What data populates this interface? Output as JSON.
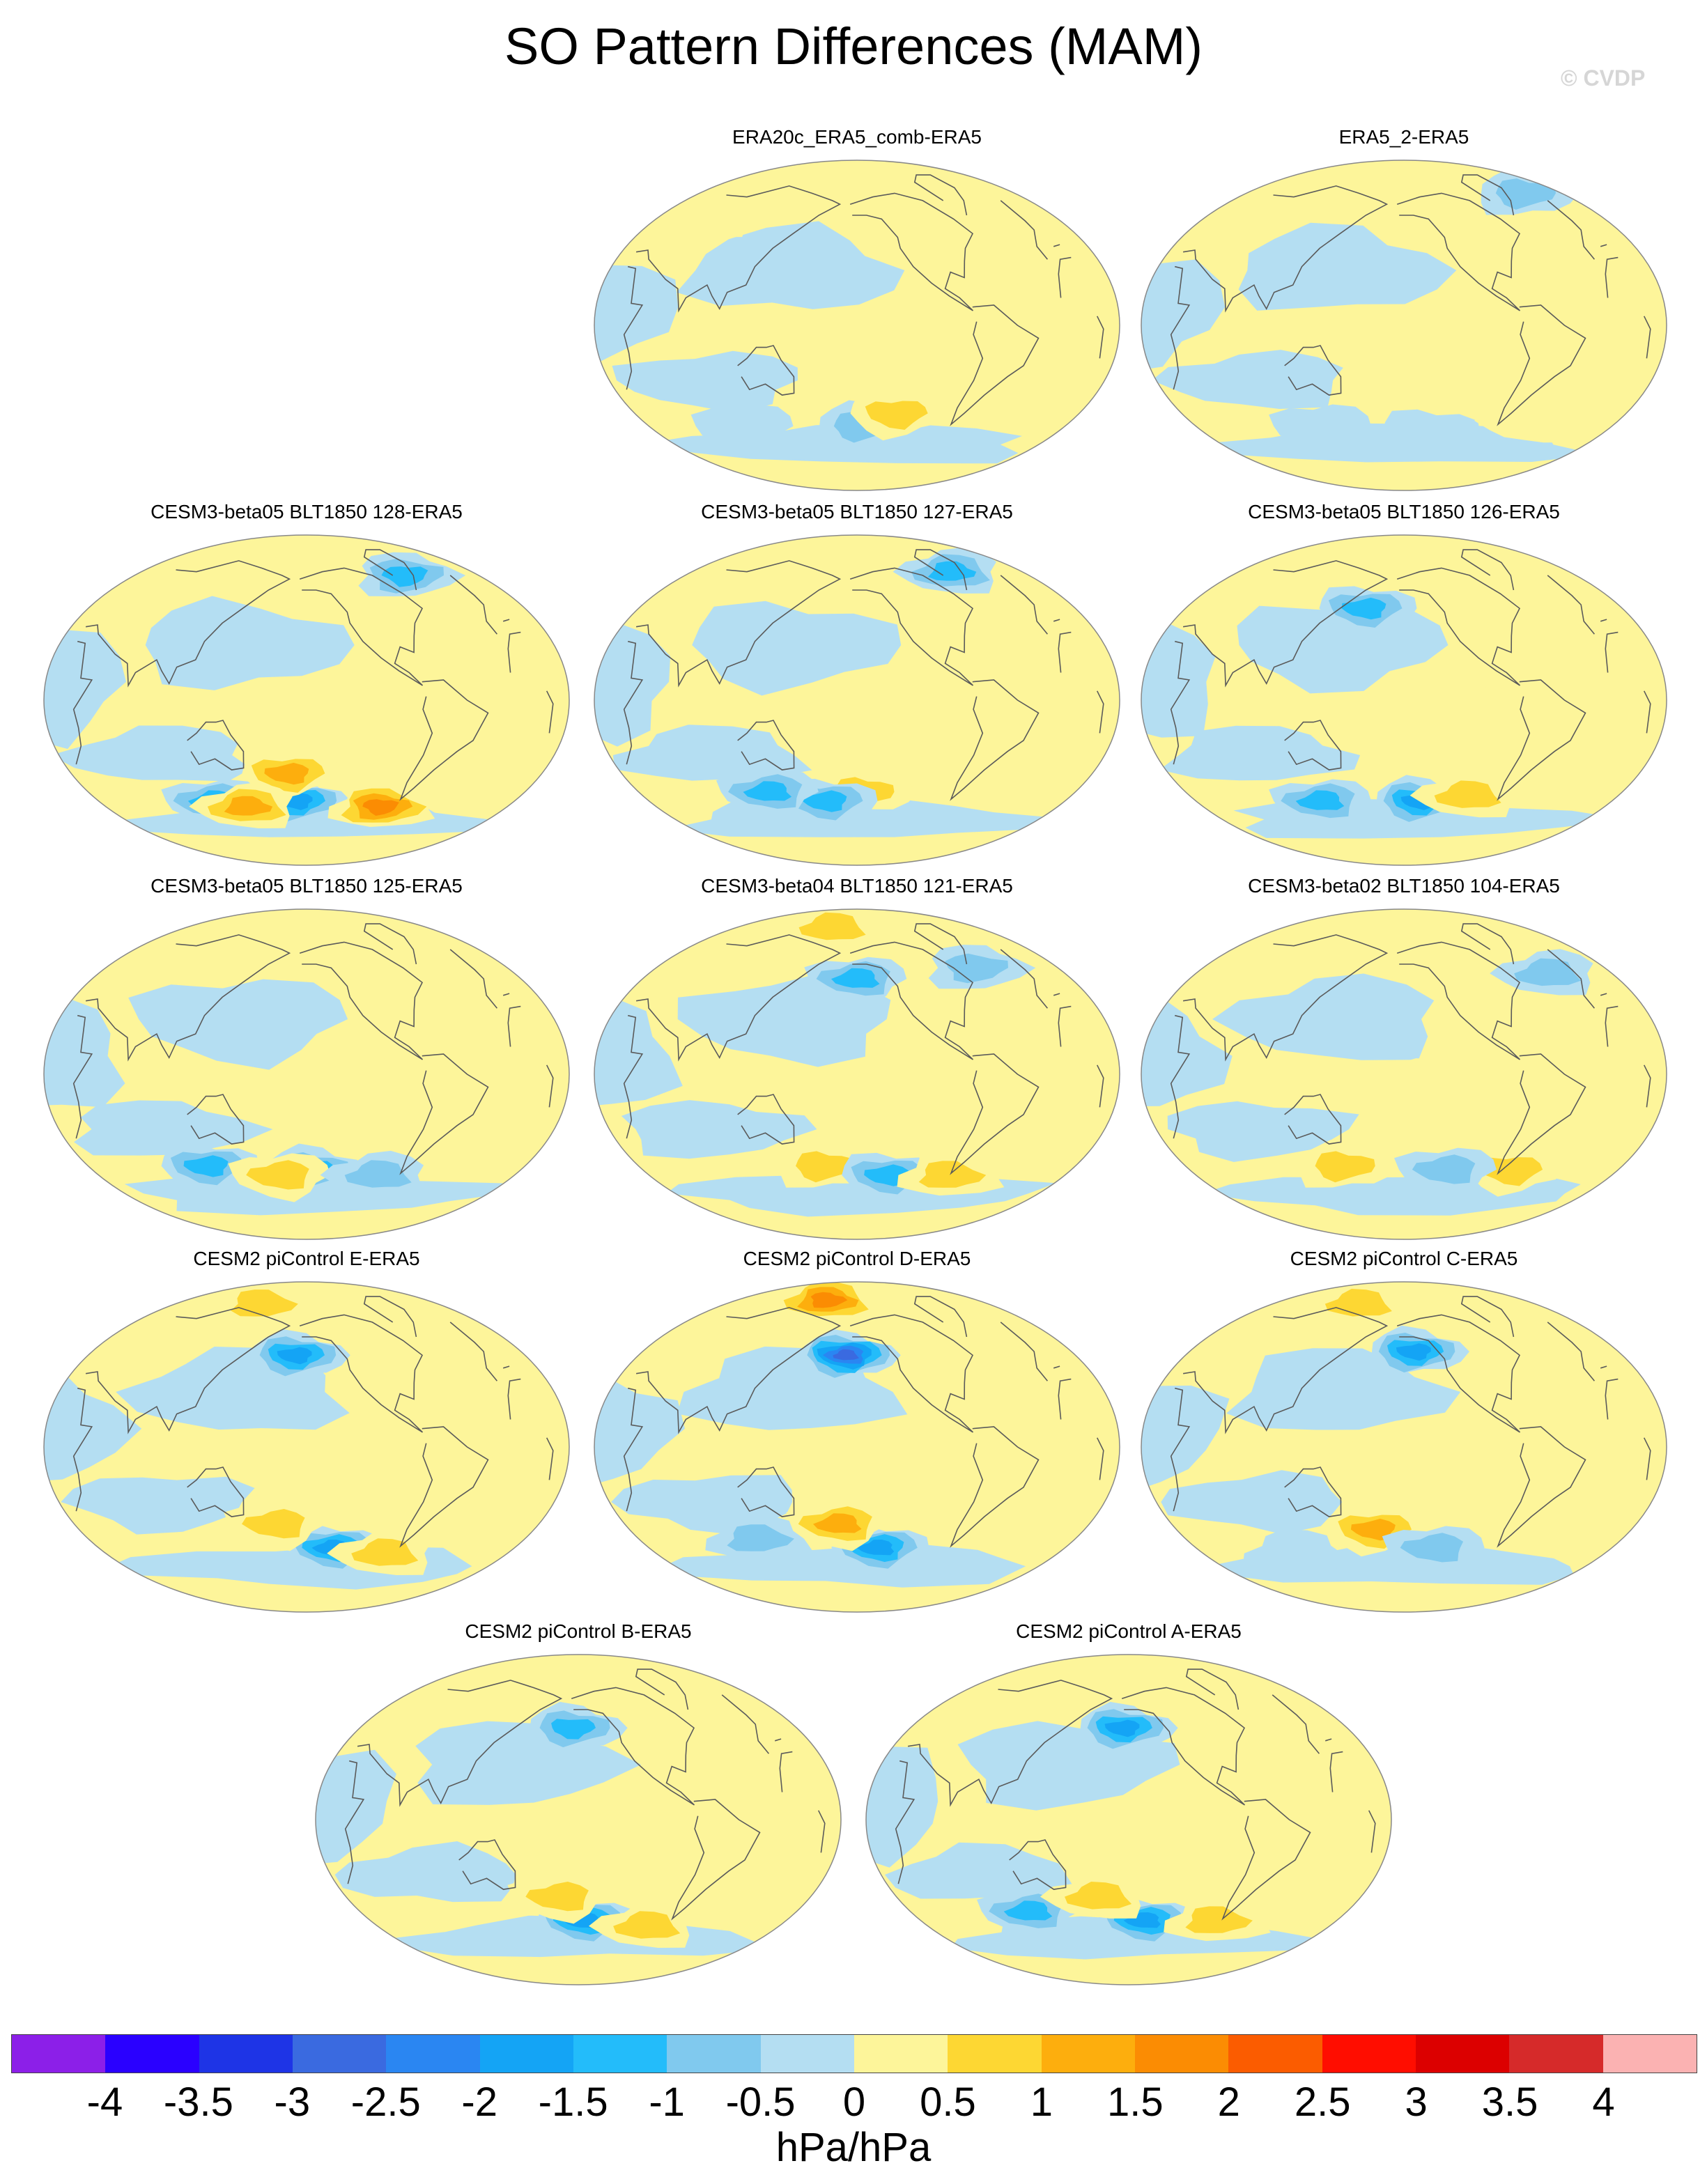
{
  "title": "SO Pattern Differences (MAM)",
  "watermark": "© CVDP",
  "units": "hPa/hPa",
  "colorbar": {
    "labels": [
      "-4",
      "-3.5",
      "-3",
      "-2.5",
      "-2",
      "-1.5",
      "-1",
      "-0.5",
      "0",
      "0.5",
      "1",
      "1.5",
      "2",
      "2.5",
      "3",
      "3.5",
      "4"
    ],
    "colors": [
      "#8c1fe8",
      "#2a00ff",
      "#1e34e6",
      "#3a6ae0",
      "#2a86f2",
      "#14a4f5",
      "#23bcfa",
      "#80c9ee",
      "#b4def2",
      "#fdf59a",
      "#fdd733",
      "#fdae0d",
      "#fb8c03",
      "#fb5c00",
      "#ff0d00",
      "#dc0000",
      "#d62a2a",
      "#fbb2b2"
    ]
  },
  "panels": [
    {
      "title": "ERA20c_ERA5_comb-ERA5",
      "features": [
        {
          "lon": -155,
          "lat": -55,
          "value": -1.0
        },
        {
          "lon": -125,
          "lat": -48,
          "value": 1.0
        },
        {
          "lon": 90,
          "lat": -55,
          "value": -0.5
        },
        {
          "lon": 40,
          "lat": 60,
          "value": 0.5
        }
      ]
    },
    {
      "title": "ERA5_2-ERA5",
      "features": [
        {
          "lon": 0,
          "lat": 72,
          "value": -1.0
        },
        {
          "lon": -135,
          "lat": -58,
          "value": -0.5
        },
        {
          "lon": 120,
          "lat": -55,
          "value": -0.5
        },
        {
          "lon": -40,
          "lat": -52,
          "value": 0.5
        }
      ]
    },
    {
      "title": "CESM3-beta05 BLT1850 128-ERA5",
      "features": [
        {
          "lon": -170,
          "lat": -55,
          "value": -2.0
        },
        {
          "lon": -175,
          "lat": -40,
          "value": 1.5
        },
        {
          "lon": 110,
          "lat": -55,
          "value": -1.5
        },
        {
          "lon": 140,
          "lat": -58,
          "value": 1.5
        },
        {
          "lon": -85,
          "lat": -58,
          "value": 2.0
        },
        {
          "lon": -40,
          "lat": 68,
          "value": -1.5
        }
      ]
    },
    {
      "title": "CESM3-beta05 BLT1850 127-ERA5",
      "features": [
        {
          "lon": -155,
          "lat": -50,
          "value": 1.0
        },
        {
          "lon": 170,
          "lat": -55,
          "value": -1.5
        },
        {
          "lon": 120,
          "lat": -50,
          "value": -1.5
        },
        {
          "lon": -40,
          "lat": 70,
          "value": -1.5
        },
        {
          "lon": 180,
          "lat": 78,
          "value": 0.5
        }
      ]
    },
    {
      "title": "CESM3-beta05 BLT1850 126-ERA5",
      "features": [
        {
          "lon": -145,
          "lat": -55,
          "value": -2.0
        },
        {
          "lon": 165,
          "lat": 50,
          "value": -1.5
        },
        {
          "lon": 120,
          "lat": -55,
          "value": -1.5
        },
        {
          "lon": -100,
          "lat": -52,
          "value": 1.0
        },
        {
          "lon": -30,
          "lat": 55,
          "value": 0.5
        }
      ]
    },
    {
      "title": "CESM3-beta05 BLT1850 125-ERA5",
      "features": [
        {
          "lon": -155,
          "lat": -52,
          "value": -1.5
        },
        {
          "lon": 110,
          "lat": -50,
          "value": -1.5
        },
        {
          "lon": 175,
          "lat": -55,
          "value": 1.0
        },
        {
          "lon": -90,
          "lat": -55,
          "value": -1.0
        },
        {
          "lon": 110,
          "lat": 70,
          "value": 0.5
        }
      ]
    },
    {
      "title": "CESM3-beta04 BLT1850 121-ERA5",
      "features": [
        {
          "lon": 170,
          "lat": -50,
          "value": 1.0
        },
        {
          "lon": -130,
          "lat": -55,
          "value": -1.5
        },
        {
          "lon": -160,
          "lat": 52,
          "value": -1.5
        },
        {
          "lon": 160,
          "lat": 80,
          "value": 1.0
        },
        {
          "lon": -70,
          "lat": -55,
          "value": 1.0
        },
        {
          "lon": -40,
          "lat": 58,
          "value": -1.0
        }
      ]
    },
    {
      "title": "CESM3-beta02 BLT1850 104-ERA5",
      "features": [
        {
          "lon": 145,
          "lat": -50,
          "value": 1.0
        },
        {
          "lon": -60,
          "lat": -52,
          "value": 1.0
        },
        {
          "lon": -120,
          "lat": -52,
          "value": -1.0
        },
        {
          "lon": -20,
          "lat": 55,
          "value": -1.0
        }
      ]
    },
    {
      "title": "CESM2 piControl E-ERA5",
      "features": [
        {
          "lon": -170,
          "lat": 50,
          "value": -2.0
        },
        {
          "lon": -135,
          "lat": -55,
          "value": -2.0
        },
        {
          "lon": 175,
          "lat": -42,
          "value": 1.0
        },
        {
          "lon": -80,
          "lat": -58,
          "value": 1.0
        },
        {
          "lon": 130,
          "lat": 78,
          "value": 1.0
        }
      ]
    },
    {
      "title": "CESM2 piControl D-ERA5",
      "features": [
        {
          "lon": -170,
          "lat": 50,
          "value": -3.0
        },
        {
          "lon": -140,
          "lat": -55,
          "value": -2.0
        },
        {
          "lon": -175,
          "lat": -42,
          "value": 1.5
        },
        {
          "lon": 150,
          "lat": 80,
          "value": 2.0
        },
        {
          "lon": 110,
          "lat": -50,
          "value": -1.0
        }
      ]
    },
    {
      "title": "CESM2 piControl C-ERA5",
      "features": [
        {
          "lon": -150,
          "lat": 52,
          "value": -2.0
        },
        {
          "lon": 175,
          "lat": -45,
          "value": 1.5
        },
        {
          "lon": -130,
          "lat": -55,
          "value": -1.0
        },
        {
          "lon": 130,
          "lat": 78,
          "value": 1.0
        },
        {
          "lon": 90,
          "lat": -58,
          "value": -0.5
        }
      ]
    },
    {
      "title": "CESM2 piControl B-ERA5",
      "features": [
        {
          "lon": -165,
          "lat": 50,
          "value": -1.5
        },
        {
          "lon": -155,
          "lat": -55,
          "value": -2.0
        },
        {
          "lon": -175,
          "lat": -42,
          "value": 1.0
        },
        {
          "lon": -90,
          "lat": -58,
          "value": 1.0
        }
      ]
    },
    {
      "title": "CESM2 piControl A-ERA5",
      "features": [
        {
          "lon": -165,
          "lat": 50,
          "value": -2.0
        },
        {
          "lon": -145,
          "lat": -55,
          "value": -2.0
        },
        {
          "lon": 110,
          "lat": -50,
          "value": -1.5
        },
        {
          "lon": 175,
          "lat": -42,
          "value": 1.0
        },
        {
          "lon": -75,
          "lat": -55,
          "value": 1.0
        }
      ]
    }
  ]
}
